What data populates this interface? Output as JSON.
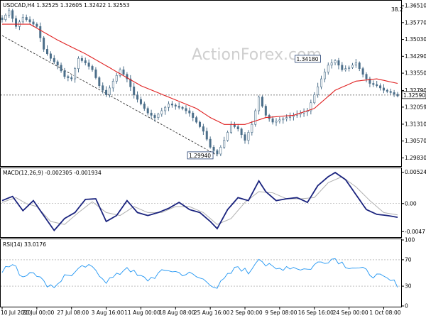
{
  "chart_data": [
    {
      "type": "candlestick",
      "title": "USDCAD,H4  1.32525 1.32605 1.32422 1.32553",
      "watermark": "ActionForex.com",
      "corner_label": "38.2",
      "ylim": [
        1.295,
        1.367
      ],
      "ytick_labels": [
        "1.36510",
        "1.35770",
        "1.35030",
        "1.34290",
        "1.33550",
        "1.32790",
        "1.32059",
        "1.31310",
        "1.30570",
        "1.29830"
      ],
      "ytick_values": [
        1.3651,
        1.3577,
        1.3503,
        1.3429,
        1.3355,
        1.3279,
        1.32059,
        1.3131,
        1.3057,
        1.2983
      ],
      "current_price": 1.3259,
      "current_price_label": "1.32590",
      "annotations": [
        {
          "label": "1.29940",
          "x": 61,
          "y": 1.2994
        },
        {
          "label": "1.34180",
          "x": 92,
          "y": 1.3418
        }
      ],
      "trendline": {
        "x0": 0,
        "y0": 1.352,
        "x1": 62,
        "y1": 1.2994
      },
      "close_anchors": [
        [
          0,
          1.359
        ],
        [
          2,
          1.363
        ],
        [
          4,
          1.356
        ],
        [
          6,
          1.36
        ],
        [
          8,
          1.358
        ],
        [
          10,
          1.356
        ],
        [
          12,
          1.346
        ],
        [
          14,
          1.342
        ],
        [
          16,
          1.339
        ],
        [
          18,
          1.334
        ],
        [
          20,
          1.333
        ],
        [
          22,
          1.342
        ],
        [
          24,
          1.34
        ],
        [
          26,
          1.337
        ],
        [
          28,
          1.33
        ],
        [
          30,
          1.326
        ],
        [
          32,
          1.332
        ],
        [
          34,
          1.337
        ],
        [
          36,
          1.333
        ],
        [
          38,
          1.326
        ],
        [
          40,
          1.322
        ],
        [
          42,
          1.318
        ],
        [
          44,
          1.316
        ],
        [
          46,
          1.319
        ],
        [
          48,
          1.322
        ],
        [
          50,
          1.321
        ],
        [
          52,
          1.32
        ],
        [
          54,
          1.318
        ],
        [
          56,
          1.314
        ],
        [
          58,
          1.31
        ],
        [
          60,
          1.303
        ],
        [
          62,
          1.3
        ],
        [
          64,
          1.306
        ],
        [
          66,
          1.313
        ],
        [
          68,
          1.311
        ],
        [
          70,
          1.306
        ],
        [
          72,
          1.313
        ],
        [
          74,
          1.325
        ],
        [
          76,
          1.317
        ],
        [
          78,
          1.314
        ],
        [
          80,
          1.315
        ],
        [
          82,
          1.316
        ],
        [
          84,
          1.317
        ],
        [
          86,
          1.318
        ],
        [
          88,
          1.319
        ],
        [
          90,
          1.326
        ],
        [
          92,
          1.333
        ],
        [
          94,
          1.339
        ],
        [
          96,
          1.341
        ],
        [
          98,
          1.337
        ],
        [
          100,
          1.338
        ],
        [
          102,
          1.34
        ],
        [
          104,
          1.335
        ],
        [
          106,
          1.331
        ],
        [
          108,
          1.33
        ],
        [
          110,
          1.328
        ],
        [
          112,
          1.327
        ],
        [
          114,
          1.3255
        ]
      ],
      "ma_anchors": [
        [
          0,
          1.357
        ],
        [
          8,
          1.357
        ],
        [
          16,
          1.35
        ],
        [
          24,
          1.344
        ],
        [
          32,
          1.337
        ],
        [
          40,
          1.33
        ],
        [
          48,
          1.325
        ],
        [
          56,
          1.32
        ],
        [
          60,
          1.316
        ],
        [
          64,
          1.313
        ],
        [
          70,
          1.313
        ],
        [
          76,
          1.316
        ],
        [
          84,
          1.317
        ],
        [
          90,
          1.32
        ],
        [
          96,
          1.328
        ],
        [
          102,
          1.332
        ],
        [
          108,
          1.333
        ],
        [
          114,
          1.331
        ]
      ],
      "x_count": 115,
      "x_tick_labels": [
        "10 Jul 2020",
        "20 Jul 00:00",
        "27 Jul 08:00",
        "3 Aug 16:00",
        "11 Aug 00:00",
        "18 Aug 08:00",
        "25 Aug 16:00",
        "2 Sep 00:00",
        "9 Sep 08:00",
        "16 Sep 16:00",
        "24 Sep 00:00",
        "1 Oct 08:00"
      ],
      "x_tick_index": [
        0,
        10,
        20,
        30,
        40,
        50,
        60,
        70,
        80,
        90,
        100,
        110
      ]
    },
    {
      "type": "line",
      "title": "MACD(12,26,9) -0.002305 -0.001934",
      "ylim": [
        -0.0055,
        0.0058
      ],
      "ytick_labels": [
        "0.005245",
        "0.00",
        "-0.0047"
      ],
      "ytick_values": [
        0.005245,
        0.0,
        -0.0047
      ],
      "series": [
        {
          "key": "macd",
          "anchors": [
            [
              0,
              0.0005
            ],
            [
              3,
              0.0012
            ],
            [
              6,
              -0.0012
            ],
            [
              9,
              0.0005
            ],
            [
              12,
              -0.002
            ],
            [
              15,
              -0.0045
            ],
            [
              18,
              -0.0025
            ],
            [
              21,
              -0.0015
            ],
            [
              24,
              0.0007
            ],
            [
              27,
              0.0008
            ],
            [
              30,
              -0.003
            ],
            [
              33,
              -0.002
            ],
            [
              36,
              0.0005
            ],
            [
              39,
              -0.0015
            ],
            [
              42,
              -0.002
            ],
            [
              45,
              -0.0015
            ],
            [
              48,
              -0.0008
            ],
            [
              51,
              0.0002
            ],
            [
              54,
              -0.001
            ],
            [
              57,
              -0.0015
            ],
            [
              60,
              -0.003
            ],
            [
              62,
              -0.0042
            ],
            [
              65,
              -0.001
            ],
            [
              68,
              0.001
            ],
            [
              71,
              0.0005
            ],
            [
              74,
              0.0038
            ],
            [
              76,
              0.002
            ],
            [
              79,
              0.0005
            ],
            [
              82,
              0.0008
            ],
            [
              85,
              0.001
            ],
            [
              88,
              0.0002
            ],
            [
              91,
              0.003
            ],
            [
              94,
              0.0045
            ],
            [
              96,
              0.0052
            ],
            [
              99,
              0.004
            ],
            [
              102,
              0.0015
            ],
            [
              105,
              -0.001
            ],
            [
              108,
              -0.0018
            ],
            [
              111,
              -0.002
            ],
            [
              114,
              -0.0023
            ]
          ]
        },
        {
          "key": "signal",
          "anchors": [
            [
              0,
              0.0002
            ],
            [
              4,
              0.001
            ],
            [
              7,
              0.0
            ],
            [
              10,
              -0.0005
            ],
            [
              14,
              -0.003
            ],
            [
              18,
              -0.0035
            ],
            [
              22,
              -0.0015
            ],
            [
              26,
              0.0003
            ],
            [
              30,
              -0.0015
            ],
            [
              34,
              -0.002
            ],
            [
              38,
              -0.0005
            ],
            [
              42,
              -0.0015
            ],
            [
              46,
              -0.0015
            ],
            [
              50,
              -0.0005
            ],
            [
              54,
              -0.0005
            ],
            [
              58,
              -0.0015
            ],
            [
              62,
              -0.0035
            ],
            [
              66,
              -0.0025
            ],
            [
              70,
              0.0002
            ],
            [
              74,
              0.002
            ],
            [
              78,
              0.0018
            ],
            [
              82,
              0.0008
            ],
            [
              86,
              0.0008
            ],
            [
              90,
              0.001
            ],
            [
              94,
              0.0035
            ],
            [
              98,
              0.0045
            ],
            [
              102,
              0.0028
            ],
            [
              106,
              0.0005
            ],
            [
              110,
              -0.0015
            ],
            [
              114,
              -0.0019
            ]
          ]
        }
      ]
    },
    {
      "type": "line",
      "title": "RSI(14) 33.0176",
      "ylim": [
        0,
        100
      ],
      "ytick_labels": [
        "100",
        "70",
        "30",
        "0"
      ],
      "ytick_values": [
        100,
        70,
        30,
        0
      ],
      "anchors": [
        [
          0,
          55
        ],
        [
          3,
          62
        ],
        [
          6,
          45
        ],
        [
          9,
          55
        ],
        [
          12,
          35
        ],
        [
          15,
          30
        ],
        [
          18,
          45
        ],
        [
          21,
          50
        ],
        [
          24,
          60
        ],
        [
          27,
          55
        ],
        [
          30,
          38
        ],
        [
          33,
          45
        ],
        [
          36,
          60
        ],
        [
          39,
          45
        ],
        [
          42,
          40
        ],
        [
          45,
          48
        ],
        [
          48,
          55
        ],
        [
          51,
          50
        ],
        [
          54,
          48
        ],
        [
          57,
          42
        ],
        [
          60,
          35
        ],
        [
          62,
          28
        ],
        [
          65,
          45
        ],
        [
          68,
          60
        ],
        [
          71,
          50
        ],
        [
          74,
          75
        ],
        [
          76,
          62
        ],
        [
          79,
          55
        ],
        [
          82,
          60
        ],
        [
          85,
          58
        ],
        [
          88,
          55
        ],
        [
          91,
          65
        ],
        [
          94,
          70
        ],
        [
          96,
          72
        ],
        [
          99,
          62
        ],
        [
          102,
          58
        ],
        [
          105,
          52
        ],
        [
          108,
          45
        ],
        [
          111,
          40
        ],
        [
          114,
          33
        ]
      ]
    }
  ]
}
